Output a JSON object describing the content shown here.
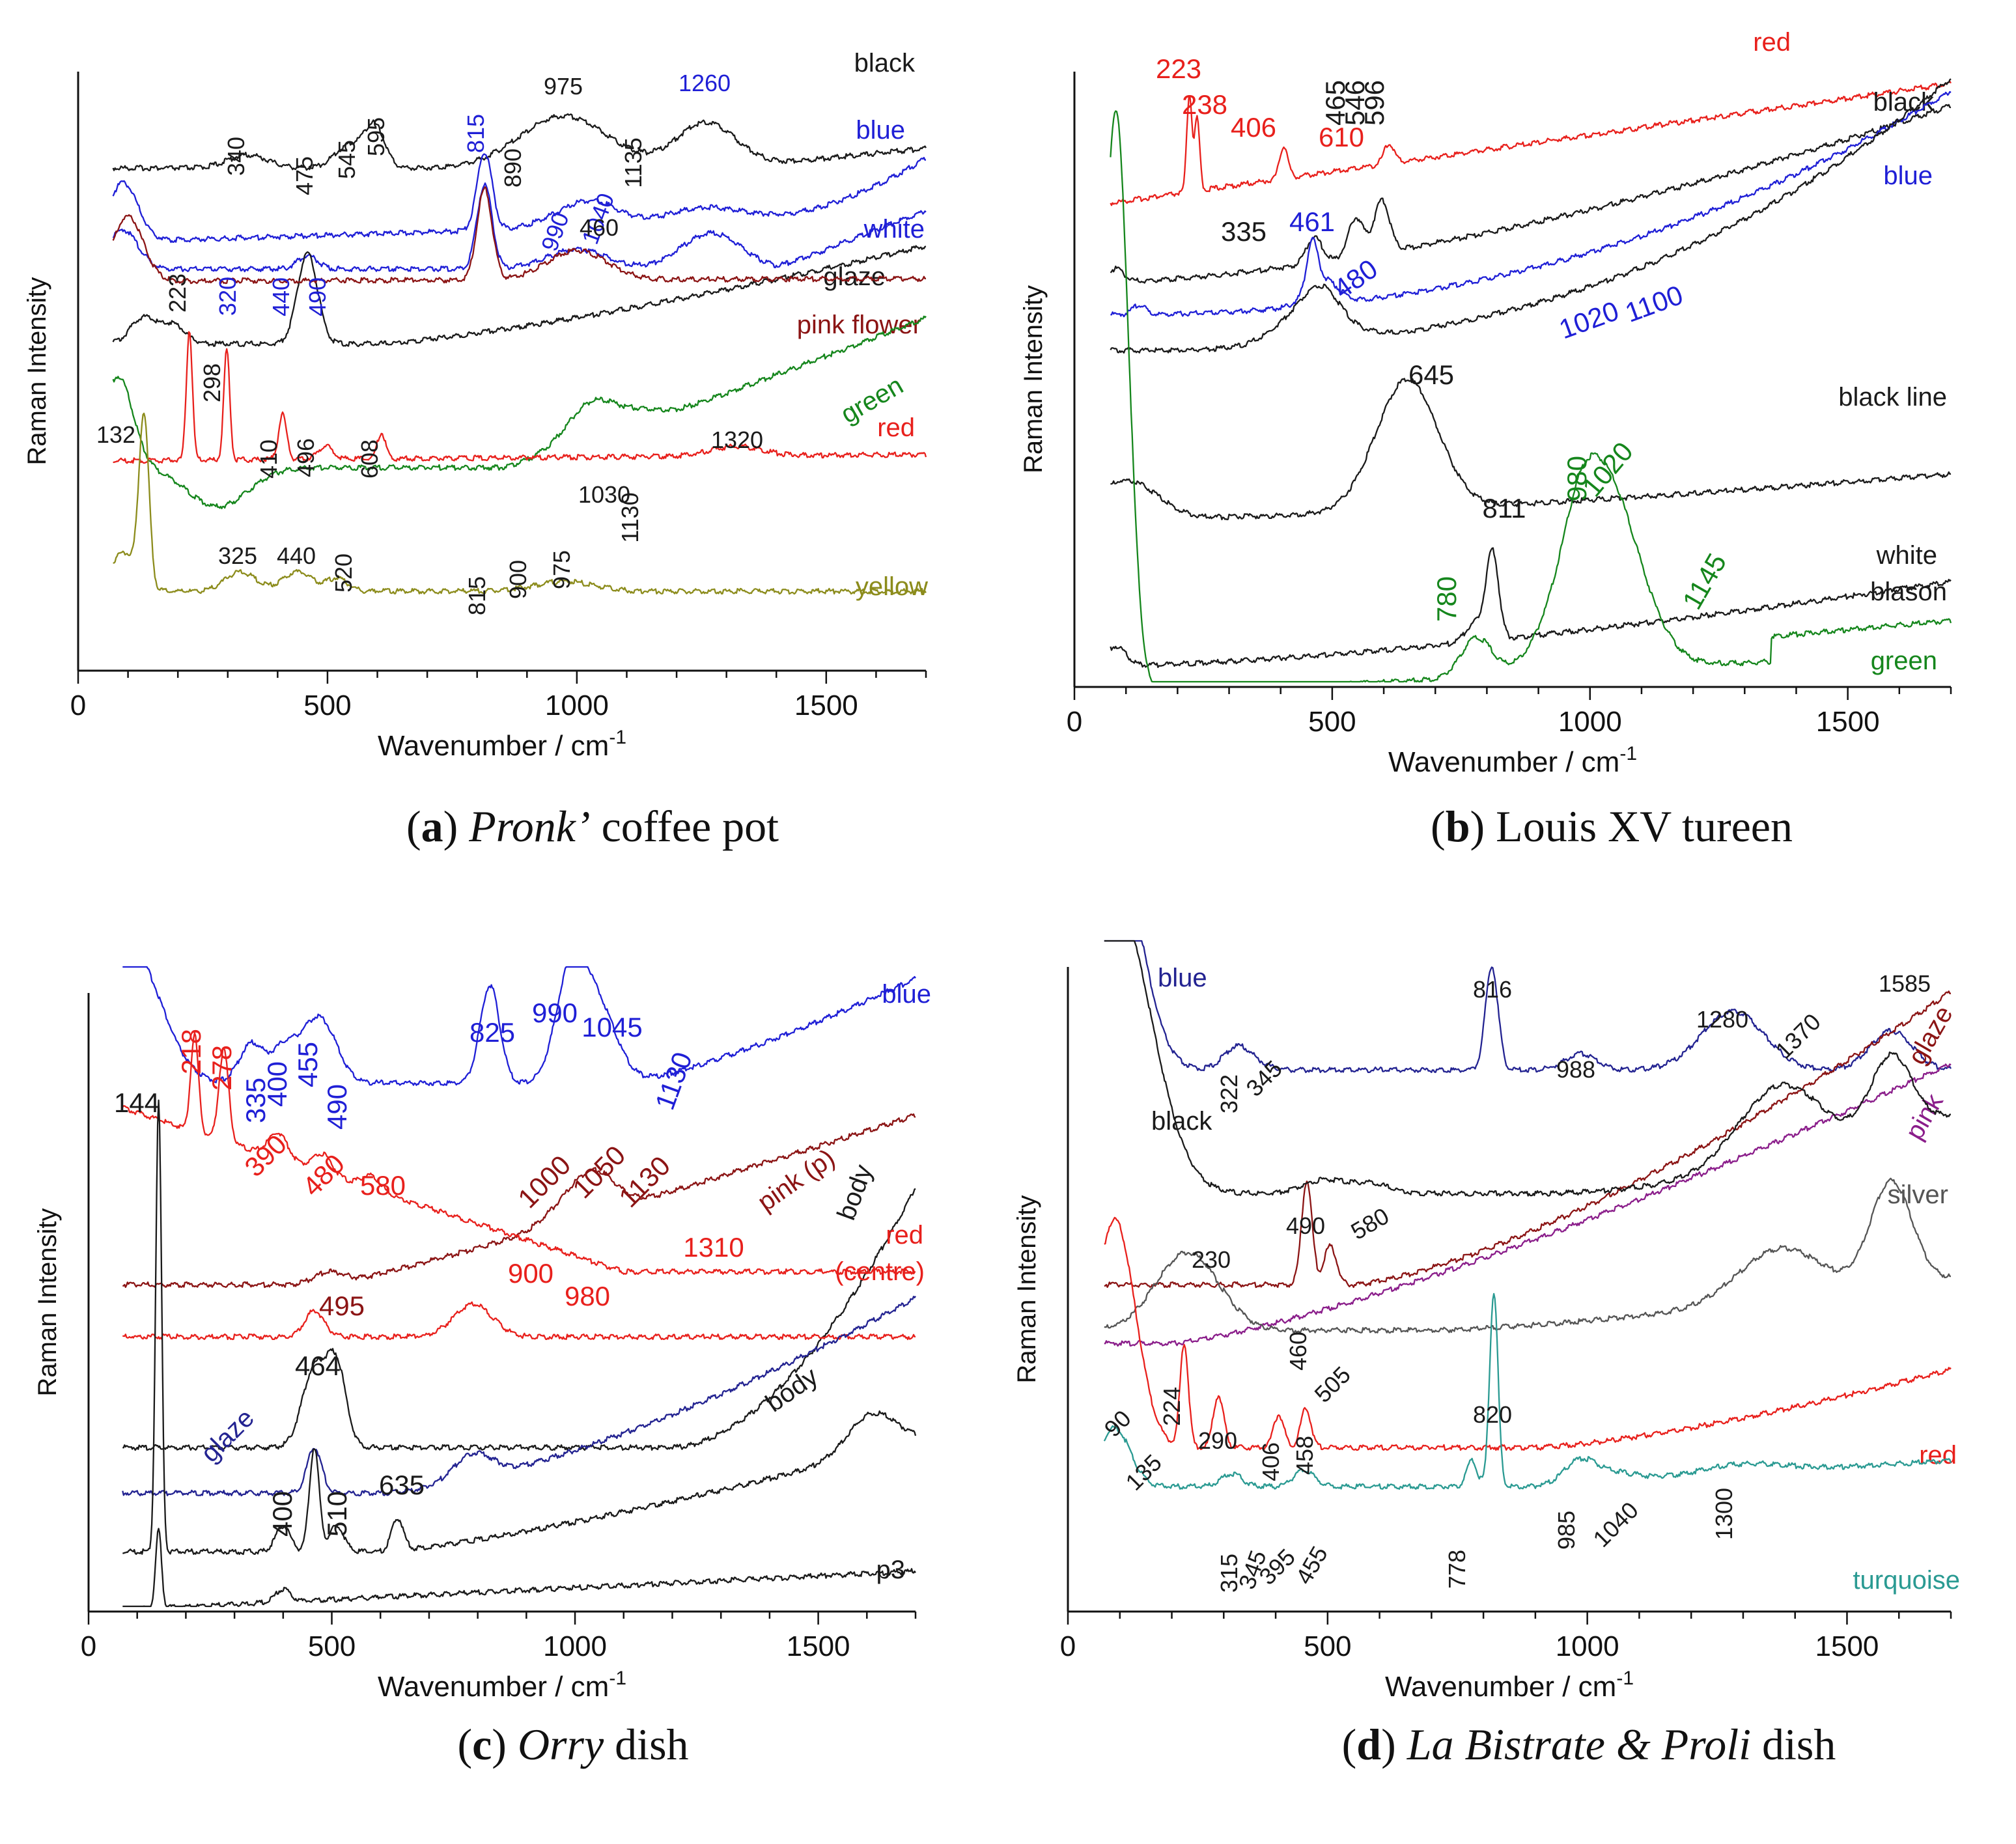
{
  "colors": {
    "black": "#1a1a1a",
    "blue": "#1f1fd6",
    "white": "#1f1fd6",
    "red": "#e8201c",
    "darkred": "#8b1414",
    "green": "#15861c",
    "olive": "#8c8c1c",
    "navy": "#232391",
    "purple": "#8a1d8a",
    "teal": "#2a9a92",
    "gray": "#555555"
  },
  "chart_data": [
    {
      "id": "a",
      "type": "line",
      "caption": {
        "letter": "a",
        "italic": "Pronk’",
        "rest": " coffee pot"
      },
      "xlabel": "Wavenumber / cm",
      "xlabel_sup": "-1",
      "ylabel": "Raman  Intensity",
      "xlim": [
        0,
        1700
      ],
      "xticks": [
        "0",
        "500",
        "1000",
        "1500"
      ],
      "series": [
        {
          "name": "black",
          "color": "#1a1a1a"
        },
        {
          "name": "blue",
          "color": "#1f1fd6"
        },
        {
          "name": "white",
          "color": "#1f1fd6"
        },
        {
          "name": "glaze",
          "color": "#1a1a1a"
        },
        {
          "name": "pink flower",
          "color": "#8b1414"
        },
        {
          "name": "green",
          "color": "#15861c"
        },
        {
          "name": "red",
          "color": "#e8201c"
        },
        {
          "name": "yellow",
          "color": "#8c8c1c"
        }
      ],
      "peaks": [
        {
          "text": "340",
          "color": "#1a1a1a"
        },
        {
          "text": "475",
          "color": "#1a1a1a"
        },
        {
          "text": "545",
          "color": "#1a1a1a"
        },
        {
          "text": "595",
          "color": "#1a1a1a"
        },
        {
          "text": "815",
          "color": "#1f1fd6"
        },
        {
          "text": "890",
          "color": "#1a1a1a"
        },
        {
          "text": "975",
          "color": "#1a1a1a"
        },
        {
          "text": "1135",
          "color": "#1a1a1a"
        },
        {
          "text": "1260",
          "color": "#1f1fd6"
        },
        {
          "text": "990",
          "color": "#1f1fd6"
        },
        {
          "text": "1040",
          "color": "#1f1fd6"
        },
        {
          "text": "460",
          "color": "#1a1a1a"
        },
        {
          "text": "223",
          "color": "#1a1a1a"
        },
        {
          "text": "320",
          "color": "#1f1fd6"
        },
        {
          "text": "440",
          "color": "#1f1fd6"
        },
        {
          "text": "490",
          "color": "#1f1fd6"
        },
        {
          "text": "298",
          "color": "#1a1a1a"
        },
        {
          "text": "132",
          "color": "#1a1a1a"
        },
        {
          "text": "410",
          "color": "#1a1a1a"
        },
        {
          "text": "496",
          "color": "#1a1a1a"
        },
        {
          "text": "608",
          "color": "#1a1a1a"
        },
        {
          "text": "1320",
          "color": "#1a1a1a"
        },
        {
          "text": "1030",
          "color": "#1a1a1a"
        },
        {
          "text": "1130",
          "color": "#1a1a1a"
        },
        {
          "text": "325",
          "color": "#1a1a1a"
        },
        {
          "text": "440",
          "color": "#1a1a1a"
        },
        {
          "text": "520",
          "color": "#1a1a1a"
        },
        {
          "text": "815",
          "color": "#1a1a1a"
        },
        {
          "text": "900",
          "color": "#1a1a1a"
        },
        {
          "text": "975",
          "color": "#1a1a1a"
        }
      ]
    },
    {
      "id": "b",
      "type": "line",
      "caption": {
        "letter": "b",
        "italic": "",
        "rest": " Louis XV tureen"
      },
      "xlabel": "Wavenumber / cm",
      "xlabel_sup": "-1",
      "ylabel": "Raman Intensity",
      "xlim": [
        0,
        1700
      ],
      "xticks": [
        "0",
        "500",
        "1000",
        "1500"
      ],
      "series": [
        {
          "name": "red",
          "color": "#e8201c"
        },
        {
          "name": "black",
          "color": "#1a1a1a"
        },
        {
          "name": "blue",
          "color": "#1f1fd6"
        },
        {
          "name": "black line",
          "color": "#1a1a1a"
        },
        {
          "name": "white",
          "color": "#1a1a1a"
        },
        {
          "name": "blason",
          "color": "#1a1a1a"
        },
        {
          "name": "green",
          "color": "#15861c"
        }
      ],
      "peaks": [
        {
          "text": "223",
          "color": "#e8201c"
        },
        {
          "text": "238",
          "color": "#e8201c"
        },
        {
          "text": "406",
          "color": "#e8201c"
        },
        {
          "text": "610",
          "color": "#e8201c"
        },
        {
          "text": "465",
          "color": "#1a1a1a"
        },
        {
          "text": "546",
          "color": "#1a1a1a"
        },
        {
          "text": "596",
          "color": "#1a1a1a"
        },
        {
          "text": "335",
          "color": "#1a1a1a"
        },
        {
          "text": "461",
          "color": "#1f1fd6"
        },
        {
          "text": "480",
          "color": "#1f1fd6"
        },
        {
          "text": "645",
          "color": "#1a1a1a"
        },
        {
          "text": "1020",
          "color": "#1f1fd6"
        },
        {
          "text": "1100",
          "color": "#1f1fd6"
        },
        {
          "text": "811",
          "color": "#1a1a1a"
        },
        {
          "text": "980",
          "color": "#15861c"
        },
        {
          "text": "1020",
          "color": "#15861c"
        },
        {
          "text": "780",
          "color": "#15861c"
        },
        {
          "text": "1145",
          "color": "#15861c"
        }
      ]
    },
    {
      "id": "c",
      "type": "line",
      "caption": {
        "letter": "c",
        "italic": "Orry",
        "rest": " dish"
      },
      "xlabel": "Wavenumber / cm",
      "xlabel_sup": "-1",
      "ylabel": "Raman  Intensity",
      "xlim": [
        0,
        1700
      ],
      "xticks": [
        "0",
        "500",
        "1000",
        "1500"
      ],
      "series": [
        {
          "name": "blue",
          "color": "#1f1fd6"
        },
        {
          "name": "pink (p)",
          "color": "#8b1414"
        },
        {
          "name": "body",
          "color": "#1a1a1a"
        },
        {
          "name": "red",
          "color": "#e8201c"
        },
        {
          "name": "(centre)",
          "color": "#e8201c"
        },
        {
          "name": "glaze",
          "color": "#232391"
        },
        {
          "name": "body",
          "color": "#1a1a1a"
        },
        {
          "name": "p3",
          "color": "#1a1a1a"
        }
      ],
      "peaks": [
        {
          "text": "218",
          "color": "#e8201c"
        },
        {
          "text": "278",
          "color": "#e8201c"
        },
        {
          "text": "335",
          "color": "#1f1fd6"
        },
        {
          "text": "400",
          "color": "#1f1fd6"
        },
        {
          "text": "455",
          "color": "#1f1fd6"
        },
        {
          "text": "490",
          "color": "#1f1fd6"
        },
        {
          "text": "825",
          "color": "#1f1fd6"
        },
        {
          "text": "990",
          "color": "#1f1fd6"
        },
        {
          "text": "1045",
          "color": "#1f1fd6"
        },
        {
          "text": "1130",
          "color": "#1f1fd6"
        },
        {
          "text": "144",
          "color": "#1a1a1a"
        },
        {
          "text": "390",
          "color": "#e8201c"
        },
        {
          "text": "480",
          "color": "#e8201c"
        },
        {
          "text": "580",
          "color": "#e8201c"
        },
        {
          "text": "1000",
          "color": "#8b1414"
        },
        {
          "text": "1050",
          "color": "#8b1414"
        },
        {
          "text": "1130",
          "color": "#8b1414"
        },
        {
          "text": "1310",
          "color": "#e8201c"
        },
        {
          "text": "495",
          "color": "#8b1414"
        },
        {
          "text": "900",
          "color": "#e8201c"
        },
        {
          "text": "980",
          "color": "#e8201c"
        },
        {
          "text": "464",
          "color": "#1a1a1a"
        },
        {
          "text": "400",
          "color": "#1a1a1a"
        },
        {
          "text": "510",
          "color": "#1a1a1a"
        },
        {
          "text": "635",
          "color": "#1a1a1a"
        }
      ]
    },
    {
      "id": "d",
      "type": "line",
      "caption": {
        "letter": "d",
        "italic": "La Bistrate & Proli",
        "rest": " dish"
      },
      "xlabel": "Wavenumber / cm",
      "xlabel_sup": "-1",
      "ylabel": "Raman  Intensity",
      "xlim": [
        0,
        1700
      ],
      "xticks": [
        "0",
        "500",
        "1000",
        "1500"
      ],
      "series": [
        {
          "name": "blue",
          "color": "#232391"
        },
        {
          "name": "glaze",
          "color": "#8b1414"
        },
        {
          "name": "pink",
          "color": "#8a1d8a"
        },
        {
          "name": "black",
          "color": "#1a1a1a"
        },
        {
          "name": "silver",
          "color": "#555555"
        },
        {
          "name": "red",
          "color": "#e8201c"
        },
        {
          "name": "turquoise",
          "color": "#2a9a92"
        }
      ],
      "peaks": [
        {
          "text": "322",
          "color": "#1a1a1a"
        },
        {
          "text": "345",
          "color": "#1a1a1a"
        },
        {
          "text": "816",
          "color": "#1a1a1a"
        },
        {
          "text": "988",
          "color": "#1a1a1a"
        },
        {
          "text": "1280",
          "color": "#1a1a1a"
        },
        {
          "text": "1370",
          "color": "#1a1a1a"
        },
        {
          "text": "1585",
          "color": "#1a1a1a"
        },
        {
          "text": "490",
          "color": "#1a1a1a"
        },
        {
          "text": "580",
          "color": "#1a1a1a"
        },
        {
          "text": "230",
          "color": "#1a1a1a"
        },
        {
          "text": "460",
          "color": "#1a1a1a"
        },
        {
          "text": "90",
          "color": "#1a1a1a"
        },
        {
          "text": "224",
          "color": "#1a1a1a"
        },
        {
          "text": "505",
          "color": "#1a1a1a"
        },
        {
          "text": "290",
          "color": "#1a1a1a"
        },
        {
          "text": "135",
          "color": "#1a1a1a"
        },
        {
          "text": "406",
          "color": "#1a1a1a"
        },
        {
          "text": "458",
          "color": "#1a1a1a"
        },
        {
          "text": "820",
          "color": "#1a1a1a"
        },
        {
          "text": "315",
          "color": "#1a1a1a"
        },
        {
          "text": "345",
          "color": "#1a1a1a"
        },
        {
          "text": "395",
          "color": "#1a1a1a"
        },
        {
          "text": "455",
          "color": "#1a1a1a"
        },
        {
          "text": "778",
          "color": "#1a1a1a"
        },
        {
          "text": "985",
          "color": "#1a1a1a"
        },
        {
          "text": "1040",
          "color": "#1a1a1a"
        },
        {
          "text": "1300",
          "color": "#1a1a1a"
        }
      ]
    }
  ]
}
